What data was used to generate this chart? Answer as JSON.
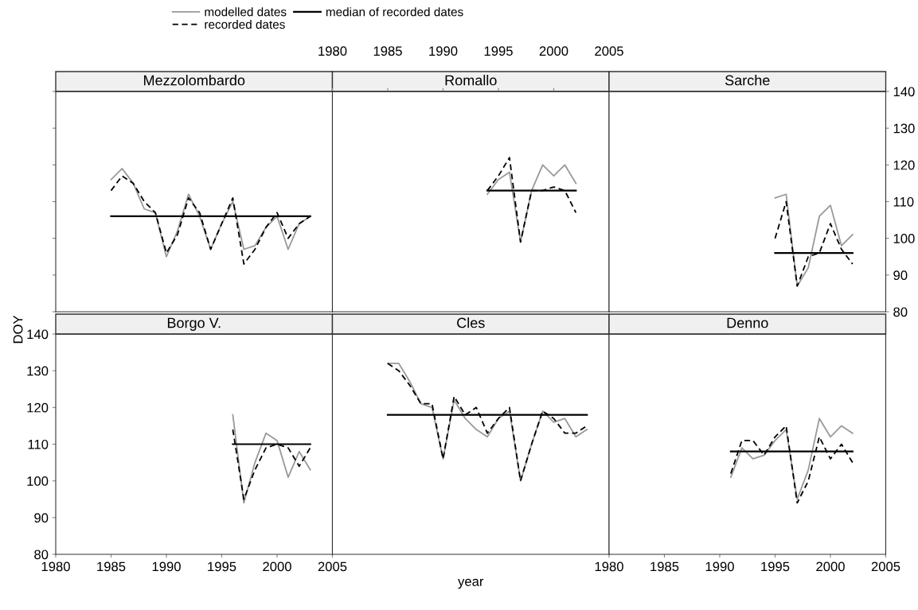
{
  "chart_data": [
    {
      "type": "line",
      "title": "Mezzolombardo",
      "legend": "top",
      "xlim": [
        1980,
        2005
      ],
      "ylim": [
        80,
        140
      ],
      "xticks": [
        1980,
        1985,
        1990,
        1995,
        2000,
        2005
      ],
      "yticks": [
        80,
        90,
        100,
        110,
        120,
        130,
        140
      ],
      "tick_labels": false,
      "series": [
        {
          "name": "modelled dates",
          "color": "#999999",
          "line_style": "solid",
          "x": [
            1985,
            1986,
            1987,
            1988,
            1989,
            1990,
            1991,
            1992,
            1993,
            1994,
            1995,
            1996,
            1997,
            1998,
            1999,
            2000,
            2001,
            2002,
            2003
          ],
          "values": [
            116,
            119,
            115,
            108,
            107,
            95,
            102,
            112,
            106,
            97,
            104,
            110,
            97,
            98,
            103,
            106,
            97,
            104,
            106
          ]
        },
        {
          "name": "recorded dates",
          "color": "#000000",
          "line_style": "dashed",
          "x": [
            1985,
            1986,
            1987,
            1988,
            1989,
            1990,
            1991,
            1992,
            1993,
            1994,
            1995,
            1996,
            1997,
            1998,
            1999,
            2000,
            2001,
            2002,
            2003
          ],
          "values": [
            113,
            117,
            115,
            110,
            107,
            96,
            101,
            111,
            107,
            97,
            104,
            111,
            93,
            97,
            103,
            107,
            100,
            104,
            106
          ]
        },
        {
          "name": "median of recorded dates",
          "color": "#000000",
          "line_style": "solid",
          "x": [
            1985,
            2003
          ],
          "values": [
            106,
            106
          ]
        }
      ]
    },
    {
      "type": "line",
      "title": "Romallo",
      "xlim": [
        1980,
        2005
      ],
      "ylim": [
        80,
        140
      ],
      "yticks": [
        80,
        90,
        100,
        110,
        120,
        130,
        140
      ],
      "tick_labels": false,
      "x2lim": [
        1980,
        2005
      ],
      "x2ticks": [
        1980,
        1985,
        1990,
        1995,
        2000,
        2005
      ],
      "series": [
        {
          "color": "#999999",
          "line_style": "solid",
          "x": [
            1994,
            1995,
            1996,
            1997,
            1998,
            1999,
            2000,
            2001,
            2002
          ],
          "values": [
            112,
            116,
            118,
            99,
            113,
            120,
            117,
            120,
            115
          ]
        },
        {
          "color": "#000000",
          "line_style": "dashed",
          "x": [
            1994,
            1995,
            1996,
            1997,
            1998,
            1999,
            2000,
            2001,
            2002
          ],
          "values": [
            113,
            117,
            122,
            99,
            113,
            113,
            114,
            113,
            107
          ]
        },
        {
          "color": "#000000",
          "line_style": "solid",
          "x": [
            1994,
            2002
          ],
          "values": [
            113,
            113
          ]
        }
      ]
    },
    {
      "type": "line",
      "title": "Sarche",
      "xlim": [
        1980,
        2005
      ],
      "xticks": [
        1980,
        1985,
        1990,
        1995,
        2000,
        2005
      ],
      "tick_labels": "y",
      "y2lim": [
        80,
        140
      ],
      "y2ticks": [
        80,
        90,
        100,
        110,
        120,
        130,
        140
      ],
      "series": [
        {
          "axis": "y2",
          "color": "#999999",
          "line_style": "solid",
          "x": [
            1995,
            1996,
            1997,
            1998,
            1999,
            2000,
            2001,
            2002
          ],
          "values": [
            111,
            112,
            87,
            92,
            106,
            109,
            98,
            101
          ]
        },
        {
          "axis": "y2",
          "color": "#000000",
          "line_style": "dashed",
          "x": [
            1995,
            1996,
            1997,
            1998,
            1999,
            2000,
            2001,
            2002
          ],
          "values": [
            100,
            110,
            87,
            95,
            96,
            104,
            97,
            93
          ]
        },
        {
          "axis": "y2",
          "color": "#000000",
          "line_style": "solid",
          "x": [
            1995,
            2002
          ],
          "values": [
            96,
            96
          ]
        }
      ]
    },
    {
      "type": "line",
      "title": "Borgo V.",
      "ylabel": "DOY",
      "xlim": [
        1980,
        2005
      ],
      "ylim": [
        80,
        140
      ],
      "xticks": [
        1980,
        1985,
        1990,
        1995,
        2000,
        2005
      ],
      "yticks": [
        80,
        90,
        100,
        110,
        120,
        130,
        140
      ],
      "series": [
        {
          "color": "#999999",
          "line_style": "solid",
          "x": [
            1996,
            1997,
            1998,
            1999,
            2000,
            2001,
            2002,
            2003
          ],
          "values": [
            118,
            94,
            105,
            113,
            111,
            101,
            108,
            103
          ]
        },
        {
          "color": "#000000",
          "line_style": "dashed",
          "x": [
            1996,
            1997,
            1998,
            1999,
            2000,
            2001,
            2002,
            2003
          ],
          "values": [
            114,
            95,
            103,
            109,
            110,
            109,
            104,
            109
          ]
        },
        {
          "color": "#000000",
          "line_style": "solid",
          "x": [
            1996,
            2003
          ],
          "values": [
            110,
            110
          ]
        }
      ]
    },
    {
      "type": "line",
      "title": "Cles",
      "xlabel": "year",
      "xlim": [
        1980,
        2005
      ],
      "ylim": [
        80,
        140
      ],
      "xticks": [
        1980,
        1985,
        1990,
        1995,
        2000,
        2005
      ],
      "yticks": [
        80,
        90,
        100,
        110,
        120,
        130,
        140
      ],
      "tick_labels": false,
      "series": [
        {
          "color": "#999999",
          "line_style": "solid",
          "x": [
            1985,
            1986,
            1987,
            1988,
            1989,
            1990,
            1991,
            1992,
            1993,
            1994,
            1995,
            1996,
            1997,
            1998,
            1999,
            2000,
            2001,
            2002,
            2003
          ],
          "values": [
            132,
            132,
            127,
            121,
            120,
            106,
            122,
            117,
            114,
            112,
            117,
            119,
            100,
            110,
            119,
            116,
            117,
            112,
            114
          ]
        },
        {
          "color": "#000000",
          "line_style": "dashed",
          "x": [
            1985,
            1986,
            1987,
            1988,
            1989,
            1990,
            1991,
            1992,
            1993,
            1994,
            1995,
            1996,
            1997,
            1998,
            1999,
            2000,
            2001,
            2002,
            2003
          ],
          "values": [
            132,
            130,
            126,
            121,
            121,
            106,
            123,
            118,
            120,
            113,
            117,
            120,
            100,
            110,
            119,
            117,
            113,
            113,
            115
          ]
        },
        {
          "color": "#000000",
          "line_style": "solid",
          "x": [
            1985,
            2003
          ],
          "values": [
            118,
            118
          ]
        }
      ]
    },
    {
      "type": "line",
      "title": "Denno",
      "xlim": [
        1980,
        2005
      ],
      "ylim": [
        80,
        140
      ],
      "xticks": [
        1980,
        1985,
        1990,
        1995,
        2000,
        2005
      ],
      "yticks": [
        80,
        90,
        100,
        110,
        120,
        130,
        140
      ],
      "tick_labels": "x",
      "series": [
        {
          "color": "#999999",
          "line_style": "solid",
          "x": [
            1991,
            1992,
            1993,
            1994,
            1995,
            1996,
            1997,
            1998,
            1999,
            2000,
            2001,
            2002
          ],
          "values": [
            101,
            109,
            106,
            107,
            111,
            114,
            95,
            103,
            117,
            112,
            115,
            113
          ]
        },
        {
          "color": "#000000",
          "line_style": "dashed",
          "x": [
            1991,
            1992,
            1993,
            1994,
            1995,
            1996,
            1997,
            1998,
            1999,
            2000,
            2001,
            2002
          ],
          "values": [
            102,
            111,
            111,
            107,
            112,
            115,
            94,
            100,
            112,
            106,
            110,
            105
          ]
        },
        {
          "color": "#000000",
          "line_style": "solid",
          "x": [
            1991,
            2002
          ],
          "values": [
            108,
            108
          ]
        }
      ]
    }
  ]
}
